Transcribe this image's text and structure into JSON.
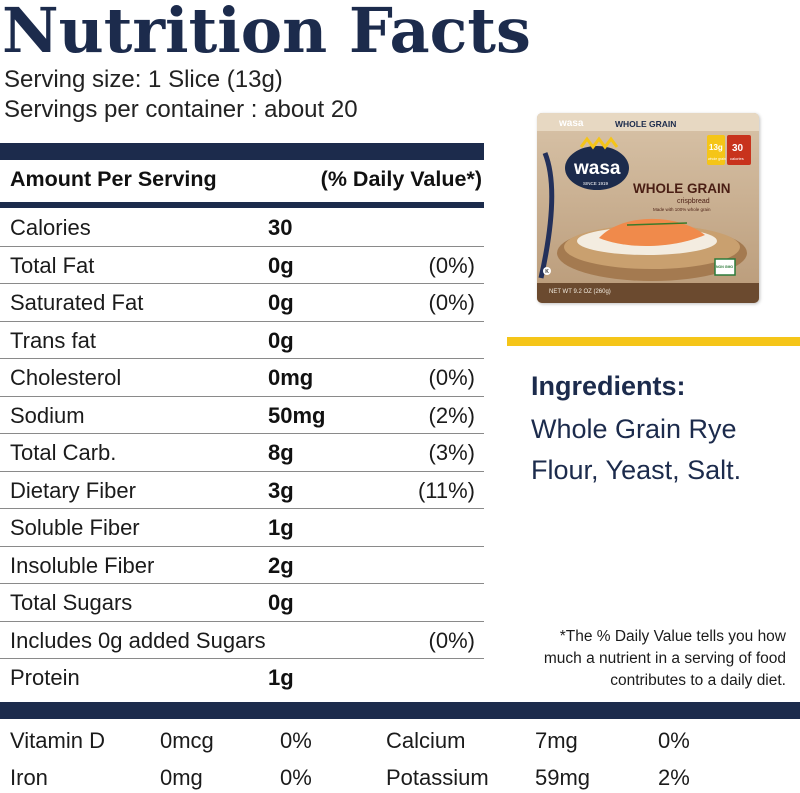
{
  "title": "Nutrition Facts",
  "serving_size": "Serving size: 1 Slice (13g)",
  "servings_per_container": "Servings per container : about 20",
  "header": {
    "amount_label": "Amount Per Serving",
    "dv_label": "(% Daily Value*)"
  },
  "rows": [
    {
      "label": "Calories",
      "amount": "30",
      "dv": ""
    },
    {
      "label": "Total Fat",
      "amount": "0g",
      "dv": "(0%)"
    },
    {
      "label": "Saturated Fat",
      "amount": "0g",
      "dv": "(0%)"
    },
    {
      "label": "Trans fat",
      "amount": "0g",
      "dv": ""
    },
    {
      "label": "Cholesterol",
      "amount": "0mg",
      "dv": "(0%)"
    },
    {
      "label": "Sodium",
      "amount": "50mg",
      "dv": "(2%)"
    },
    {
      "label": "Total Carb.",
      "amount": "8g",
      "dv": "(3%)"
    },
    {
      "label": "Dietary Fiber",
      "amount": "3g",
      "dv": "(11%)"
    },
    {
      "label": "Soluble Fiber",
      "amount": "1g",
      "dv": ""
    },
    {
      "label": "Insoluble Fiber",
      "amount": "2g",
      "dv": ""
    },
    {
      "label": "Total Sugars",
      "amount": "0g",
      "dv": ""
    },
    {
      "label": "Includes 0g added Sugars",
      "amount": "",
      "dv": "(0%)"
    },
    {
      "label": "Protein",
      "amount": "1g",
      "dv": ""
    }
  ],
  "vitamins": [
    {
      "name": "Vitamin D",
      "amount": "0mcg",
      "dv": "0%"
    },
    {
      "name": "Calcium",
      "amount": "7mg",
      "dv": "0%"
    },
    {
      "name": "Iron",
      "amount": "0mg",
      "dv": "0%"
    },
    {
      "name": "Potassium",
      "amount": "59mg",
      "dv": "2%"
    }
  ],
  "product": {
    "brand": "wasa",
    "brand_since": "SINCE 1919",
    "name": "WHOLE GRAIN",
    "subname": "crispbread",
    "tagline": "Made with 100% whole grain",
    "badge_grams": "13g",
    "badge_grams_sub": "whole grain",
    "badge_cal": "30",
    "badge_cal_sub": "calories",
    "net_wt": "NET WT 9.2 OZ (260g)",
    "non_gmo": "NON GMO",
    "kosher": "K"
  },
  "ingredients": {
    "title": "Ingredients:",
    "text": "Whole Grain Rye Flour, Yeast, Salt."
  },
  "footnote": "*The % Daily Value tells you how much a nutrient in a serving of food contributes to a daily diet.",
  "colors": {
    "navy": "#1c2b4c",
    "yellow": "#f5c518"
  }
}
